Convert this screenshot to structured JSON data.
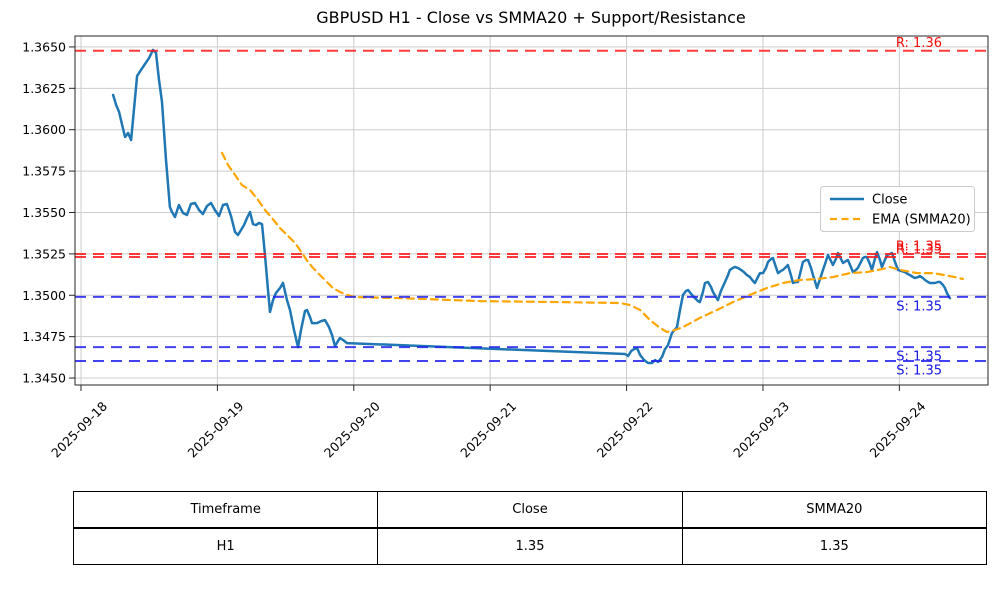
{
  "title": "GBPUSD H1 - Close vs SMMA20 + Support/Resistance",
  "legend": {
    "close_label": "Close",
    "ema_label": "EMA (SMMA20)"
  },
  "colors": {
    "close": "#1f77b4",
    "ema": "#ffa500",
    "resistance": "#ff1a1a",
    "support": "#2222ee",
    "resistance_label": "#f20d0d",
    "support_label": "#1515e6",
    "grid": "#cccccc",
    "axis": "#262626",
    "text": "#000000"
  },
  "chart_data": {
    "type": "line",
    "title": "GBPUSD H1 - Close vs SMMA20 + Support/Resistance",
    "x_tick_labels": [
      "2025-09-18",
      "2025-09-19",
      "2025-09-20",
      "2025-09-21",
      "2025-09-22",
      "2025-09-23",
      "2025-09-24"
    ],
    "y_ticks": [
      1.345,
      1.3475,
      1.35,
      1.3525,
      1.355,
      1.3575,
      1.36,
      1.3625,
      1.365
    ],
    "ylim": [
      1.34458,
      1.36566
    ],
    "xlim_days": [
      -0.044,
      6.65
    ],
    "grid": true,
    "legend_position": "center right",
    "levels": [
      {
        "label": "R: 1.36",
        "value": 1.36477,
        "kind": "resistance",
        "label_pos": "above"
      },
      {
        "label": "R: 1.35",
        "value": 1.35249,
        "kind": "resistance",
        "label_pos": "above"
      },
      {
        "label": "R: 1.35",
        "value": 1.35231,
        "kind": "resistance",
        "label_pos": "above"
      },
      {
        "label": "S: 1.35",
        "value": 1.3499,
        "kind": "support",
        "label_pos": "below"
      },
      {
        "label": "S: 1.35",
        "value": 1.34687,
        "kind": "support",
        "label_pos": "below"
      },
      {
        "label": "S: 1.35",
        "value": 1.34603,
        "kind": "support",
        "label_pos": "below"
      }
    ],
    "series": [
      {
        "name": "Close",
        "style": "solid",
        "points": [
          [
            0.235,
            1.3621
          ],
          [
            0.257,
            1.3615
          ],
          [
            0.279,
            1.36107
          ],
          [
            0.301,
            1.36029
          ],
          [
            0.323,
            1.35956
          ],
          [
            0.345,
            1.3598
          ],
          [
            0.367,
            1.35938
          ],
          [
            0.389,
            1.36131
          ],
          [
            0.411,
            1.36325
          ],
          [
            0.44,
            1.36361
          ],
          [
            0.469,
            1.36397
          ],
          [
            0.499,
            1.36434
          ],
          [
            0.528,
            1.36482
          ],
          [
            0.55,
            1.36464
          ],
          [
            0.572,
            1.36301
          ],
          [
            0.594,
            1.36168
          ],
          [
            0.623,
            1.35817
          ],
          [
            0.652,
            1.35533
          ],
          [
            0.667,
            1.35503
          ],
          [
            0.689,
            1.35473
          ],
          [
            0.718,
            1.35545
          ],
          [
            0.748,
            1.35497
          ],
          [
            0.777,
            1.35485
          ],
          [
            0.806,
            1.35551
          ],
          [
            0.836,
            1.35557
          ],
          [
            0.865,
            1.35515
          ],
          [
            0.894,
            1.35491
          ],
          [
            0.924,
            1.35539
          ],
          [
            0.953,
            1.35557
          ],
          [
            0.982,
            1.35515
          ],
          [
            1.012,
            1.35479
          ],
          [
            1.041,
            1.35545
          ],
          [
            1.07,
            1.35551
          ],
          [
            1.1,
            1.35479
          ],
          [
            1.129,
            1.35382
          ],
          [
            1.151,
            1.35364
          ],
          [
            1.173,
            1.35394
          ],
          [
            1.195,
            1.35424
          ],
          [
            1.217,
            1.35467
          ],
          [
            1.239,
            1.35503
          ],
          [
            1.261,
            1.3543
          ],
          [
            1.283,
            1.35424
          ],
          [
            1.305,
            1.35437
          ],
          [
            1.327,
            1.3543
          ],
          [
            1.349,
            1.35243
          ],
          [
            1.371,
            1.35032
          ],
          [
            1.386,
            1.34899
          ],
          [
            1.408,
            1.34971
          ],
          [
            1.43,
            1.35014
          ],
          [
            1.459,
            1.35044
          ],
          [
            1.481,
            1.35074
          ],
          [
            1.51,
            1.34971
          ],
          [
            1.532,
            1.34911
          ],
          [
            1.562,
            1.3479
          ],
          [
            1.591,
            1.34687
          ],
          [
            1.613,
            1.3479
          ],
          [
            1.642,
            1.34905
          ],
          [
            1.657,
            1.34911
          ],
          [
            1.679,
            1.34869
          ],
          [
            1.694,
            1.34832
          ],
          [
            1.73,
            1.34832
          ],
          [
            1.76,
            1.34844
          ],
          [
            1.789,
            1.3485
          ],
          [
            1.818,
            1.34808
          ],
          [
            1.84,
            1.3476
          ],
          [
            1.862,
            1.34693
          ],
          [
            1.884,
            1.34724
          ],
          [
            1.899,
            1.34742
          ],
          [
            1.921,
            1.3473
          ],
          [
            1.95,
            1.34711
          ],
          [
            3.989,
            1.34645
          ],
          [
            4.011,
            1.34633
          ],
          [
            4.033,
            1.34663
          ],
          [
            4.055,
            1.34675
          ],
          [
            4.077,
            1.34681
          ],
          [
            4.099,
            1.34639
          ],
          [
            4.128,
            1.34609
          ],
          [
            4.158,
            1.34591
          ],
          [
            4.187,
            1.34591
          ],
          [
            4.209,
            1.34609
          ],
          [
            4.231,
            1.34597
          ],
          [
            4.26,
            1.34627
          ],
          [
            4.282,
            1.34675
          ],
          [
            4.304,
            1.34699
          ],
          [
            4.333,
            1.34772
          ],
          [
            4.37,
            1.34808
          ],
          [
            4.392,
            1.34911
          ],
          [
            4.414,
            1.35002
          ],
          [
            4.436,
            1.35026
          ],
          [
            4.451,
            1.35032
          ],
          [
            4.473,
            1.35008
          ],
          [
            4.502,
            1.34983
          ],
          [
            4.524,
            1.34965
          ],
          [
            4.538,
            1.34959
          ],
          [
            4.56,
            1.3502
          ],
          [
            4.575,
            1.35074
          ],
          [
            4.597,
            1.3508
          ],
          [
            4.619,
            1.3505
          ],
          [
            4.634,
            1.3502
          ],
          [
            4.656,
            1.34989
          ],
          [
            4.67,
            1.34971
          ],
          [
            4.692,
            1.35026
          ],
          [
            4.722,
            1.3508
          ],
          [
            4.744,
            1.35122
          ],
          [
            4.758,
            1.35153
          ],
          [
            4.78,
            1.35165
          ],
          [
            4.795,
            1.35171
          ],
          [
            4.817,
            1.35165
          ],
          [
            4.839,
            1.35153
          ],
          [
            4.861,
            1.3514
          ],
          [
            4.883,
            1.35122
          ],
          [
            4.905,
            1.3511
          ],
          [
            4.927,
            1.35086
          ],
          [
            4.941,
            1.35074
          ],
          [
            4.963,
            1.3511
          ],
          [
            4.978,
            1.35134
          ],
          [
            5.0,
            1.35134
          ],
          [
            5.022,
            1.35165
          ],
          [
            5.037,
            1.35201
          ],
          [
            5.059,
            1.35219
          ],
          [
            5.073,
            1.35225
          ],
          [
            5.095,
            1.35171
          ],
          [
            5.11,
            1.35134
          ],
          [
            5.132,
            1.35147
          ],
          [
            5.147,
            1.35153
          ],
          [
            5.169,
            1.35171
          ],
          [
            5.183,
            1.35183
          ],
          [
            5.205,
            1.35122
          ],
          [
            5.22,
            1.35074
          ],
          [
            5.242,
            1.3508
          ],
          [
            5.257,
            1.3508
          ],
          [
            5.279,
            1.35153
          ],
          [
            5.293,
            1.35201
          ],
          [
            5.315,
            1.35213
          ],
          [
            5.33,
            1.35213
          ],
          [
            5.352,
            1.35165
          ],
          [
            5.367,
            1.35122
          ],
          [
            5.381,
            1.35086
          ],
          [
            5.396,
            1.35044
          ],
          [
            5.418,
            1.35098
          ],
          [
            5.44,
            1.35153
          ],
          [
            5.462,
            1.35207
          ],
          [
            5.477,
            1.35243
          ],
          [
            5.499,
            1.35207
          ],
          [
            5.513,
            1.35183
          ],
          [
            5.535,
            1.35219
          ],
          [
            5.55,
            1.35255
          ],
          [
            5.572,
            1.35219
          ],
          [
            5.587,
            1.35195
          ],
          [
            5.609,
            1.35207
          ],
          [
            5.623,
            1.35213
          ],
          [
            5.645,
            1.35171
          ],
          [
            5.66,
            1.3514
          ],
          [
            5.682,
            1.35153
          ],
          [
            5.696,
            1.35165
          ],
          [
            5.718,
            1.35201
          ],
          [
            5.733,
            1.35225
          ],
          [
            5.748,
            1.35231
          ],
          [
            5.762,
            1.35231
          ],
          [
            5.784,
            1.35189
          ],
          [
            5.799,
            1.35153
          ],
          [
            5.821,
            1.35219
          ],
          [
            5.836,
            1.35261
          ],
          [
            5.858,
            1.35213
          ],
          [
            5.872,
            1.35171
          ],
          [
            5.894,
            1.35213
          ],
          [
            5.909,
            1.35243
          ],
          [
            5.931,
            1.35249
          ],
          [
            5.946,
            1.35255
          ],
          [
            5.968,
            1.35201
          ],
          [
            5.99,
            1.35153
          ],
          [
            6.012,
            1.35147
          ],
          [
            6.041,
            1.3514
          ],
          [
            6.063,
            1.35128
          ],
          [
            6.078,
            1.35122
          ],
          [
            6.1,
            1.3511
          ],
          [
            6.114,
            1.35104
          ],
          [
            6.136,
            1.3511
          ],
          [
            6.151,
            1.35116
          ],
          [
            6.173,
            1.35104
          ],
          [
            6.188,
            1.35092
          ],
          [
            6.21,
            1.3508
          ],
          [
            6.224,
            1.35074
          ],
          [
            6.246,
            1.35074
          ],
          [
            6.261,
            1.35074
          ],
          [
            6.283,
            1.3508
          ],
          [
            6.298,
            1.3508
          ],
          [
            6.32,
            1.35062
          ],
          [
            6.334,
            1.35044
          ],
          [
            6.349,
            1.35014
          ],
          [
            6.356,
            1.35002
          ],
          [
            6.371,
            1.34983
          ]
        ]
      },
      {
        "name": "EMA (SMMA20)",
        "style": "dashed",
        "points": [
          [
            1.034,
            1.3586
          ],
          [
            1.078,
            1.35787
          ],
          [
            1.129,
            1.35727
          ],
          [
            1.18,
            1.35666
          ],
          [
            1.239,
            1.35636
          ],
          [
            1.298,
            1.35576
          ],
          [
            1.349,
            1.35515
          ],
          [
            1.4,
            1.35467
          ],
          [
            1.459,
            1.35406
          ],
          [
            1.569,
            1.35316
          ],
          [
            1.62,
            1.35255
          ],
          [
            1.664,
            1.35201
          ],
          [
            1.701,
            1.35165
          ],
          [
            1.752,
            1.35122
          ],
          [
            1.803,
            1.3508
          ],
          [
            1.847,
            1.35044
          ],
          [
            1.899,
            1.3502
          ],
          [
            1.95,
            1.35002
          ],
          [
            2.009,
            1.34989
          ],
          [
            2.339,
            1.34983
          ],
          [
            2.925,
            1.34965
          ],
          [
            3.512,
            1.34959
          ],
          [
            3.952,
            1.34953
          ],
          [
            4.025,
            1.34941
          ],
          [
            4.099,
            1.34911
          ],
          [
            4.172,
            1.3485
          ],
          [
            4.245,
            1.34802
          ],
          [
            4.297,
            1.34778
          ],
          [
            4.355,
            1.3479
          ],
          [
            4.414,
            1.34808
          ],
          [
            4.538,
            1.34863
          ],
          [
            4.663,
            1.34911
          ],
          [
            4.78,
            1.34959
          ],
          [
            4.905,
            1.35002
          ],
          [
            5.029,
            1.35044
          ],
          [
            5.147,
            1.35074
          ],
          [
            5.271,
            1.35092
          ],
          [
            5.396,
            1.35098
          ],
          [
            5.513,
            1.3511
          ],
          [
            5.638,
            1.35134
          ],
          [
            5.762,
            1.3514
          ],
          [
            5.88,
            1.35159
          ],
          [
            5.931,
            1.35171
          ],
          [
            6.004,
            1.35153
          ],
          [
            6.129,
            1.35134
          ],
          [
            6.246,
            1.35134
          ],
          [
            6.334,
            1.35122
          ],
          [
            6.407,
            1.3511
          ],
          [
            6.466,
            1.35098
          ]
        ]
      }
    ]
  },
  "table": {
    "headers": [
      "Timeframe",
      "Close",
      "SMMA20"
    ],
    "rows": [
      [
        "H1",
        "1.35",
        "1.35"
      ]
    ]
  }
}
